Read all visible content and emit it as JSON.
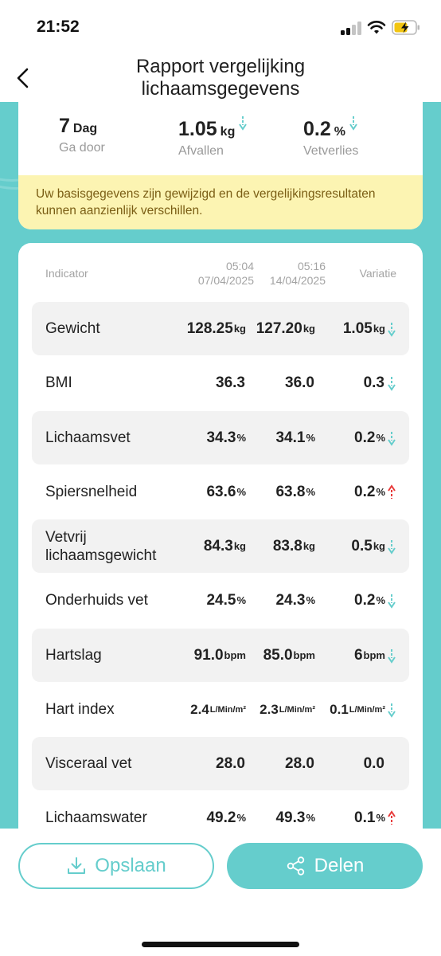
{
  "status_bar": {
    "time": "21:52"
  },
  "header": {
    "title_line1": "Rapport vergelijking",
    "title_line2": "lichaamsgegevens"
  },
  "summary": [
    {
      "value": "7",
      "unit": "Dag",
      "label": "Ga door",
      "arrow": ""
    },
    {
      "value": "1.05",
      "unit": "kg",
      "label": "Afvallen",
      "arrow": "down"
    },
    {
      "value": "0.2",
      "unit": "%",
      "label": "Vetverlies",
      "arrow": "down"
    }
  ],
  "notice": "Uw basisgegevens zijn gewijzigd en de vergelijkingsresultaten kunnen aanzienlijk verschillen.",
  "table": {
    "header": {
      "indicator": "Indicator",
      "date1_time": "05:04",
      "date1_date": "07/04/2025",
      "date2_time": "05:16",
      "date2_date": "14/04/2025",
      "variation": "Variatie"
    },
    "rows": [
      {
        "label": "Gewicht",
        "v1": "128.25",
        "u1": "kg",
        "v2": "127.20",
        "u2": "kg",
        "var": "1.05",
        "uvar": "kg",
        "arrow": "down"
      },
      {
        "label": "BMI",
        "v1": "36.3",
        "u1": "",
        "v2": "36.0",
        "u2": "",
        "var": "0.3",
        "uvar": "",
        "arrow": "down"
      },
      {
        "label": "Lichaamsvet",
        "v1": "34.3",
        "u1": "%",
        "v2": "34.1",
        "u2": "%",
        "var": "0.2",
        "uvar": "%",
        "arrow": "down"
      },
      {
        "label": "Spiersnelheid",
        "v1": "63.6",
        "u1": "%",
        "v2": "63.8",
        "u2": "%",
        "var": "0.2",
        "uvar": "%",
        "arrow": "up"
      },
      {
        "label": "Vetvrij lichaamsgewicht",
        "v1": "84.3",
        "u1": "kg",
        "v2": "83.8",
        "u2": "kg",
        "var": "0.5",
        "uvar": "kg",
        "arrow": "down"
      },
      {
        "label": "Onderhuids vet",
        "v1": "24.5",
        "u1": "%",
        "v2": "24.3",
        "u2": "%",
        "var": "0.2",
        "uvar": "%",
        "arrow": "down"
      },
      {
        "label": "Hartslag",
        "v1": "91.0",
        "u1": "bpm",
        "v2": "85.0",
        "u2": "bpm",
        "var": "6",
        "uvar": "bpm",
        "arrow": "down"
      },
      {
        "label": "Hart index",
        "v1": "2.4",
        "u1": "L/Min/m²",
        "v2": "2.3",
        "u2": "L/Min/m²",
        "var": "0.1",
        "uvar": "L/Min/m²",
        "arrow": "down"
      },
      {
        "label": "Visceraal vet",
        "v1": "28.0",
        "u1": "",
        "v2": "28.0",
        "u2": "",
        "var": "0.0",
        "uvar": "",
        "arrow": ""
      },
      {
        "label": "Lichaamswater",
        "v1": "49.2",
        "u1": "%",
        "v2": "49.3",
        "u2": "%",
        "var": "0.1",
        "uvar": "%",
        "arrow": "up"
      }
    ]
  },
  "buttons": {
    "save": "Opslaan",
    "share": "Delen"
  },
  "colors": {
    "accent": "#65cdcc",
    "arrow_down": "#65cdcc",
    "arrow_up": "#e83a3a",
    "notice_bg": "#fcf4b2",
    "notice_text": "#7a5d14"
  },
  "icons": {
    "back": "chevron-left-icon",
    "save": "download-icon",
    "share": "share-icon",
    "down": "arrow-down-icon",
    "up": "arrow-up-icon"
  }
}
